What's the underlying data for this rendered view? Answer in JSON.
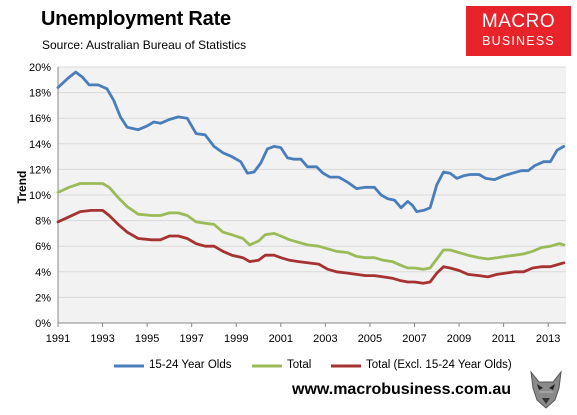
{
  "header": {
    "title": "Unemployment Rate",
    "source": "Source: Australian Bureau of Statistics"
  },
  "logo": {
    "line1": "MACRO",
    "line2": "BUSINESS"
  },
  "footer": {
    "site": "www.macrobusiness.com.au"
  },
  "colors": {
    "youth": "#4a7ebb",
    "total": "#9bbb59",
    "excl": "#a63232",
    "plot_bg": "#f2f2f2",
    "grid": "#d9d9d9",
    "logo": "#e8232a"
  },
  "chart_data": {
    "type": "line",
    "title": "Unemployment Rate",
    "ylabel": "Trend",
    "xlabel": "",
    "xlim": [
      1991,
      2013.8
    ],
    "ylim": [
      0,
      20
    ],
    "y_ticks": [
      "0%",
      "2%",
      "4%",
      "6%",
      "8%",
      "10%",
      "12%",
      "14%",
      "16%",
      "18%",
      "20%"
    ],
    "x_ticks": [
      "1991",
      "1993",
      "1995",
      "1997",
      "1999",
      "2001",
      "2003",
      "2005",
      "2007",
      "2009",
      "2011",
      "2013"
    ],
    "grid": true,
    "legend": "bottom",
    "series": [
      {
        "name": "15-24 Year Olds",
        "color": "#4a7ebb",
        "points": [
          [
            1991,
            18.4
          ],
          [
            1991.5,
            19.2
          ],
          [
            1991.8,
            19.6
          ],
          [
            1992.1,
            19.2
          ],
          [
            1992.4,
            18.6
          ],
          [
            1992.8,
            18.6
          ],
          [
            1993.2,
            18.3
          ],
          [
            1993.5,
            17.4
          ],
          [
            1993.8,
            16.1
          ],
          [
            1994.1,
            15.3
          ],
          [
            1994.6,
            15.1
          ],
          [
            1995,
            15.4
          ],
          [
            1995.3,
            15.7
          ],
          [
            1995.6,
            15.6
          ],
          [
            1996,
            15.9
          ],
          [
            1996.4,
            16.1
          ],
          [
            1996.8,
            16.0
          ],
          [
            1997.2,
            14.8
          ],
          [
            1997.6,
            14.7
          ],
          [
            1998,
            13.8
          ],
          [
            1998.4,
            13.3
          ],
          [
            1998.8,
            13.0
          ],
          [
            1999.2,
            12.6
          ],
          [
            1999.5,
            11.7
          ],
          [
            1999.8,
            11.8
          ],
          [
            2000.1,
            12.5
          ],
          [
            2000.4,
            13.6
          ],
          [
            2000.7,
            13.8
          ],
          [
            2001,
            13.7
          ],
          [
            2001.3,
            12.9
          ],
          [
            2001.6,
            12.8
          ],
          [
            2001.9,
            12.8
          ],
          [
            2002.2,
            12.2
          ],
          [
            2002.6,
            12.2
          ],
          [
            2002.9,
            11.7
          ],
          [
            2003.2,
            11.4
          ],
          [
            2003.6,
            11.4
          ],
          [
            2004,
            11.0
          ],
          [
            2004.4,
            10.5
          ],
          [
            2004.8,
            10.6
          ],
          [
            2005.2,
            10.6
          ],
          [
            2005.5,
            10.0
          ],
          [
            2005.8,
            9.7
          ],
          [
            2006.1,
            9.6
          ],
          [
            2006.4,
            9.0
          ],
          [
            2006.7,
            9.5
          ],
          [
            2006.9,
            9.2
          ],
          [
            2007.1,
            8.7
          ],
          [
            2007.4,
            8.8
          ],
          [
            2007.7,
            9.0
          ],
          [
            2008,
            10.8
          ],
          [
            2008.3,
            11.8
          ],
          [
            2008.6,
            11.7
          ],
          [
            2008.9,
            11.3
          ],
          [
            2009.2,
            11.5
          ],
          [
            2009.5,
            11.6
          ],
          [
            2009.9,
            11.6
          ],
          [
            2010.2,
            11.3
          ],
          [
            2010.6,
            11.2
          ],
          [
            2011,
            11.5
          ],
          [
            2011.4,
            11.7
          ],
          [
            2011.8,
            11.9
          ],
          [
            2012.1,
            11.9
          ],
          [
            2012.4,
            12.3
          ],
          [
            2012.8,
            12.6
          ],
          [
            2013.1,
            12.6
          ],
          [
            2013.4,
            13.5
          ],
          [
            2013.7,
            13.8
          ]
        ]
      },
      {
        "name": "Total",
        "color": "#9bbb59",
        "points": [
          [
            1991,
            10.2
          ],
          [
            1991.5,
            10.6
          ],
          [
            1992,
            10.9
          ],
          [
            1992.5,
            10.9
          ],
          [
            1993,
            10.9
          ],
          [
            1993.3,
            10.6
          ],
          [
            1993.7,
            9.8
          ],
          [
            1994.1,
            9.1
          ],
          [
            1994.6,
            8.5
          ],
          [
            1995.2,
            8.4
          ],
          [
            1995.6,
            8.4
          ],
          [
            1996,
            8.6
          ],
          [
            1996.4,
            8.6
          ],
          [
            1996.8,
            8.4
          ],
          [
            1997.2,
            7.9
          ],
          [
            1997.6,
            7.8
          ],
          [
            1998,
            7.7
          ],
          [
            1998.4,
            7.1
          ],
          [
            1998.8,
            6.9
          ],
          [
            1999.3,
            6.6
          ],
          [
            1999.6,
            6.1
          ],
          [
            2000,
            6.4
          ],
          [
            2000.3,
            6.9
          ],
          [
            2000.7,
            7.0
          ],
          [
            2001,
            6.8
          ],
          [
            2001.4,
            6.5
          ],
          [
            2001.8,
            6.3
          ],
          [
            2002.2,
            6.1
          ],
          [
            2002.7,
            6.0
          ],
          [
            2003.1,
            5.8
          ],
          [
            2003.5,
            5.6
          ],
          [
            2004,
            5.5
          ],
          [
            2004.4,
            5.2
          ],
          [
            2004.8,
            5.1
          ],
          [
            2005.2,
            5.1
          ],
          [
            2005.6,
            4.9
          ],
          [
            2006,
            4.8
          ],
          [
            2006.4,
            4.5
          ],
          [
            2006.7,
            4.3
          ],
          [
            2007,
            4.3
          ],
          [
            2007.4,
            4.2
          ],
          [
            2007.7,
            4.3
          ],
          [
            2008,
            5.0
          ],
          [
            2008.3,
            5.7
          ],
          [
            2008.6,
            5.7
          ],
          [
            2009,
            5.5
          ],
          [
            2009.4,
            5.3
          ],
          [
            2009.9,
            5.1
          ],
          [
            2010.3,
            5.0
          ],
          [
            2010.7,
            5.1
          ],
          [
            2011.1,
            5.2
          ],
          [
            2011.5,
            5.3
          ],
          [
            2011.9,
            5.4
          ],
          [
            2012.3,
            5.6
          ],
          [
            2012.7,
            5.9
          ],
          [
            2013.1,
            6.0
          ],
          [
            2013.5,
            6.2
          ],
          [
            2013.7,
            6.1
          ]
        ]
      },
      {
        "name": "Total (Excl. 15-24 Year Olds)",
        "color": "#a63232",
        "points": [
          [
            1991,
            7.9
          ],
          [
            1991.5,
            8.3
          ],
          [
            1992,
            8.7
          ],
          [
            1992.5,
            8.8
          ],
          [
            1993,
            8.8
          ],
          [
            1993.3,
            8.4
          ],
          [
            1993.7,
            7.7
          ],
          [
            1994.1,
            7.1
          ],
          [
            1994.6,
            6.6
          ],
          [
            1995.2,
            6.5
          ],
          [
            1995.6,
            6.5
          ],
          [
            1996,
            6.8
          ],
          [
            1996.4,
            6.8
          ],
          [
            1996.8,
            6.6
          ],
          [
            1997.2,
            6.2
          ],
          [
            1997.6,
            6.0
          ],
          [
            1998,
            6.0
          ],
          [
            1998.4,
            5.6
          ],
          [
            1998.8,
            5.3
          ],
          [
            1999.3,
            5.1
          ],
          [
            1999.6,
            4.8
          ],
          [
            2000,
            4.9
          ],
          [
            2000.3,
            5.3
          ],
          [
            2000.7,
            5.3
          ],
          [
            2001,
            5.1
          ],
          [
            2001.4,
            4.9
          ],
          [
            2001.8,
            4.8
          ],
          [
            2002.2,
            4.7
          ],
          [
            2002.7,
            4.6
          ],
          [
            2003.1,
            4.2
          ],
          [
            2003.5,
            4.0
          ],
          [
            2004,
            3.9
          ],
          [
            2004.4,
            3.8
          ],
          [
            2004.8,
            3.7
          ],
          [
            2005.2,
            3.7
          ],
          [
            2005.6,
            3.6
          ],
          [
            2006,
            3.5
          ],
          [
            2006.4,
            3.3
          ],
          [
            2006.7,
            3.2
          ],
          [
            2007,
            3.2
          ],
          [
            2007.4,
            3.1
          ],
          [
            2007.7,
            3.2
          ],
          [
            2008,
            3.9
          ],
          [
            2008.3,
            4.4
          ],
          [
            2008.6,
            4.3
          ],
          [
            2009,
            4.1
          ],
          [
            2009.4,
            3.8
          ],
          [
            2009.9,
            3.7
          ],
          [
            2010.3,
            3.6
          ],
          [
            2010.7,
            3.8
          ],
          [
            2011.1,
            3.9
          ],
          [
            2011.5,
            4.0
          ],
          [
            2011.9,
            4.0
          ],
          [
            2012.3,
            4.3
          ],
          [
            2012.7,
            4.4
          ],
          [
            2013.1,
            4.4
          ],
          [
            2013.5,
            4.6
          ],
          [
            2013.7,
            4.7
          ]
        ]
      }
    ]
  }
}
